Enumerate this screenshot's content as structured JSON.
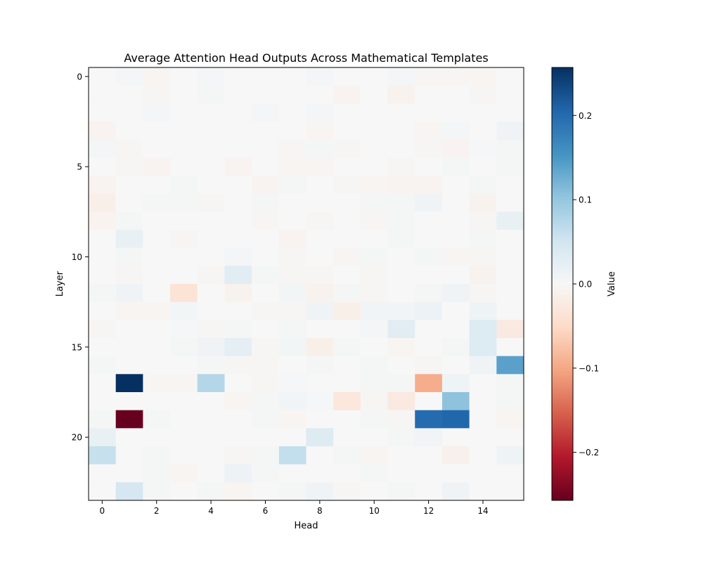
{
  "chart_data": {
    "type": "heatmap",
    "title": "Average Attention Head Outputs Across Mathematical Templates",
    "xlabel": "Head",
    "ylabel": "Layer",
    "x_ticks": [
      0,
      2,
      4,
      6,
      8,
      10,
      12,
      14
    ],
    "y_ticks": [
      0,
      5,
      10,
      15,
      20
    ],
    "n_heads": 16,
    "n_layers": 24,
    "colormap": "RdBu",
    "vmin": -0.257,
    "vmax": 0.257,
    "colorbar": {
      "label": "Value",
      "ticks": [
        -0.2,
        -0.1,
        0.0,
        0.1,
        0.2
      ],
      "tick_labels": [
        "−0.2",
        "−0.1",
        "0.0",
        "0.1",
        "0.2"
      ]
    },
    "values": [
      [
        0,
        0.005,
        -0.005,
        0,
        0.005,
        0,
        0,
        0,
        0.005,
        0,
        0,
        0.005,
        -0.003,
        -0.004,
        -0.005,
        0
      ],
      [
        0,
        0,
        -0.004,
        0,
        0.004,
        0,
        0,
        0,
        0,
        -0.007,
        0,
        -0.01,
        0,
        0,
        -0.004,
        0
      ],
      [
        0,
        0,
        0.005,
        0,
        0,
        0,
        0.005,
        0,
        0.005,
        0,
        0,
        0,
        0,
        0,
        0,
        0
      ],
      [
        -0.007,
        0,
        0,
        0,
        0,
        0,
        0,
        0,
        -0.006,
        0,
        0,
        0,
        -0.005,
        0.005,
        0,
        0.01
      ],
      [
        0.005,
        -0.003,
        0,
        0,
        0,
        0,
        0,
        -0.003,
        0.004,
        -0.003,
        0,
        0,
        -0.004,
        -0.007,
        0.003,
        0.004
      ],
      [
        0,
        -0.003,
        -0.007,
        0,
        0,
        -0.007,
        0,
        -0.005,
        -0.005,
        0,
        0,
        -0.003,
        0,
        0.004,
        0,
        0.004
      ],
      [
        -0.007,
        0,
        0,
        0.004,
        0,
        0,
        -0.007,
        0.004,
        0,
        -0.003,
        -0.006,
        -0.008,
        -0.008,
        0,
        0.004,
        0
      ],
      [
        -0.015,
        0,
        0.004,
        0.004,
        -0.004,
        0,
        0.004,
        0,
        0,
        0,
        0.004,
        0.004,
        0.01,
        0,
        -0.01,
        0
      ],
      [
        -0.008,
        0.004,
        0,
        0,
        0,
        0,
        -0.004,
        0,
        -0.004,
        0,
        -0.004,
        0.004,
        0,
        0,
        -0.004,
        0.02
      ],
      [
        0,
        0.02,
        0,
        -0.003,
        0,
        0,
        0,
        -0.007,
        0,
        0,
        0,
        0.004,
        0,
        0,
        0.004,
        0
      ],
      [
        0,
        0.004,
        0,
        0,
        0,
        0.005,
        0,
        -0.003,
        0,
        -0.004,
        0.004,
        0,
        0.004,
        -0.004,
        -0.004,
        0
      ],
      [
        0,
        -0.004,
        0,
        0,
        -0.004,
        0.03,
        0.004,
        -0.003,
        -0.003,
        0,
        -0.004,
        0,
        0,
        0,
        -0.01,
        0
      ],
      [
        0.004,
        0.01,
        0,
        -0.035,
        0,
        -0.01,
        0,
        0.007,
        -0.01,
        0.004,
        -0.004,
        0,
        0.004,
        0.01,
        -0.004,
        0
      ],
      [
        0,
        -0.006,
        -0.006,
        0.007,
        0,
        0,
        -0.003,
        -0.003,
        0.01,
        -0.015,
        0.008,
        0.008,
        0.015,
        0,
        0.012,
        0
      ],
      [
        -0.004,
        0,
        0,
        0.003,
        -0.003,
        0.004,
        0,
        0.004,
        0,
        0,
        0.006,
        0.03,
        0,
        0,
        0.035,
        -0.025
      ],
      [
        0,
        0,
        0,
        0.004,
        0.01,
        0.025,
        -0.003,
        0.007,
        -0.015,
        0.004,
        0,
        -0.006,
        0,
        0.004,
        0.035,
        0
      ],
      [
        0.004,
        0,
        0,
        0,
        0.004,
        -0.003,
        -0.003,
        0,
        0.004,
        0,
        0.004,
        0,
        -0.004,
        0,
        0.01,
        0.14
      ],
      [
        0,
        0.257,
        -0.003,
        -0.003,
        0.075,
        0,
        -0.003,
        0.003,
        0,
        0,
        0.004,
        0.004,
        -0.095,
        0.012,
        0,
        0.004
      ],
      [
        0,
        0,
        0,
        0,
        0,
        -0.006,
        0.004,
        0.008,
        0.003,
        -0.03,
        -0.004,
        -0.025,
        0,
        0.105,
        0,
        0.004
      ],
      [
        0.004,
        -0.257,
        0.004,
        0,
        0,
        0,
        0.004,
        -0.005,
        0,
        0,
        0.004,
        -0.003,
        0.2,
        0.205,
        0,
        -0.006
      ],
      [
        0.02,
        0,
        0,
        0,
        0,
        0,
        0,
        0,
        0.035,
        0,
        0,
        0.004,
        0.008,
        0,
        0,
        0
      ],
      [
        0.06,
        0,
        0.004,
        0,
        0,
        -0.004,
        0.004,
        0.063,
        0,
        0.004,
        -0.005,
        0,
        0,
        -0.012,
        0,
        0.012
      ],
      [
        0,
        0,
        0.004,
        -0.005,
        0,
        0.015,
        0.004,
        0,
        0,
        0,
        0.004,
        0,
        0,
        0,
        0,
        0
      ],
      [
        0,
        0.045,
        0.004,
        0,
        0.004,
        -0.006,
        0,
        0.004,
        0.01,
        -0.004,
        0,
        0.004,
        0,
        0.01,
        0,
        0
      ]
    ]
  }
}
